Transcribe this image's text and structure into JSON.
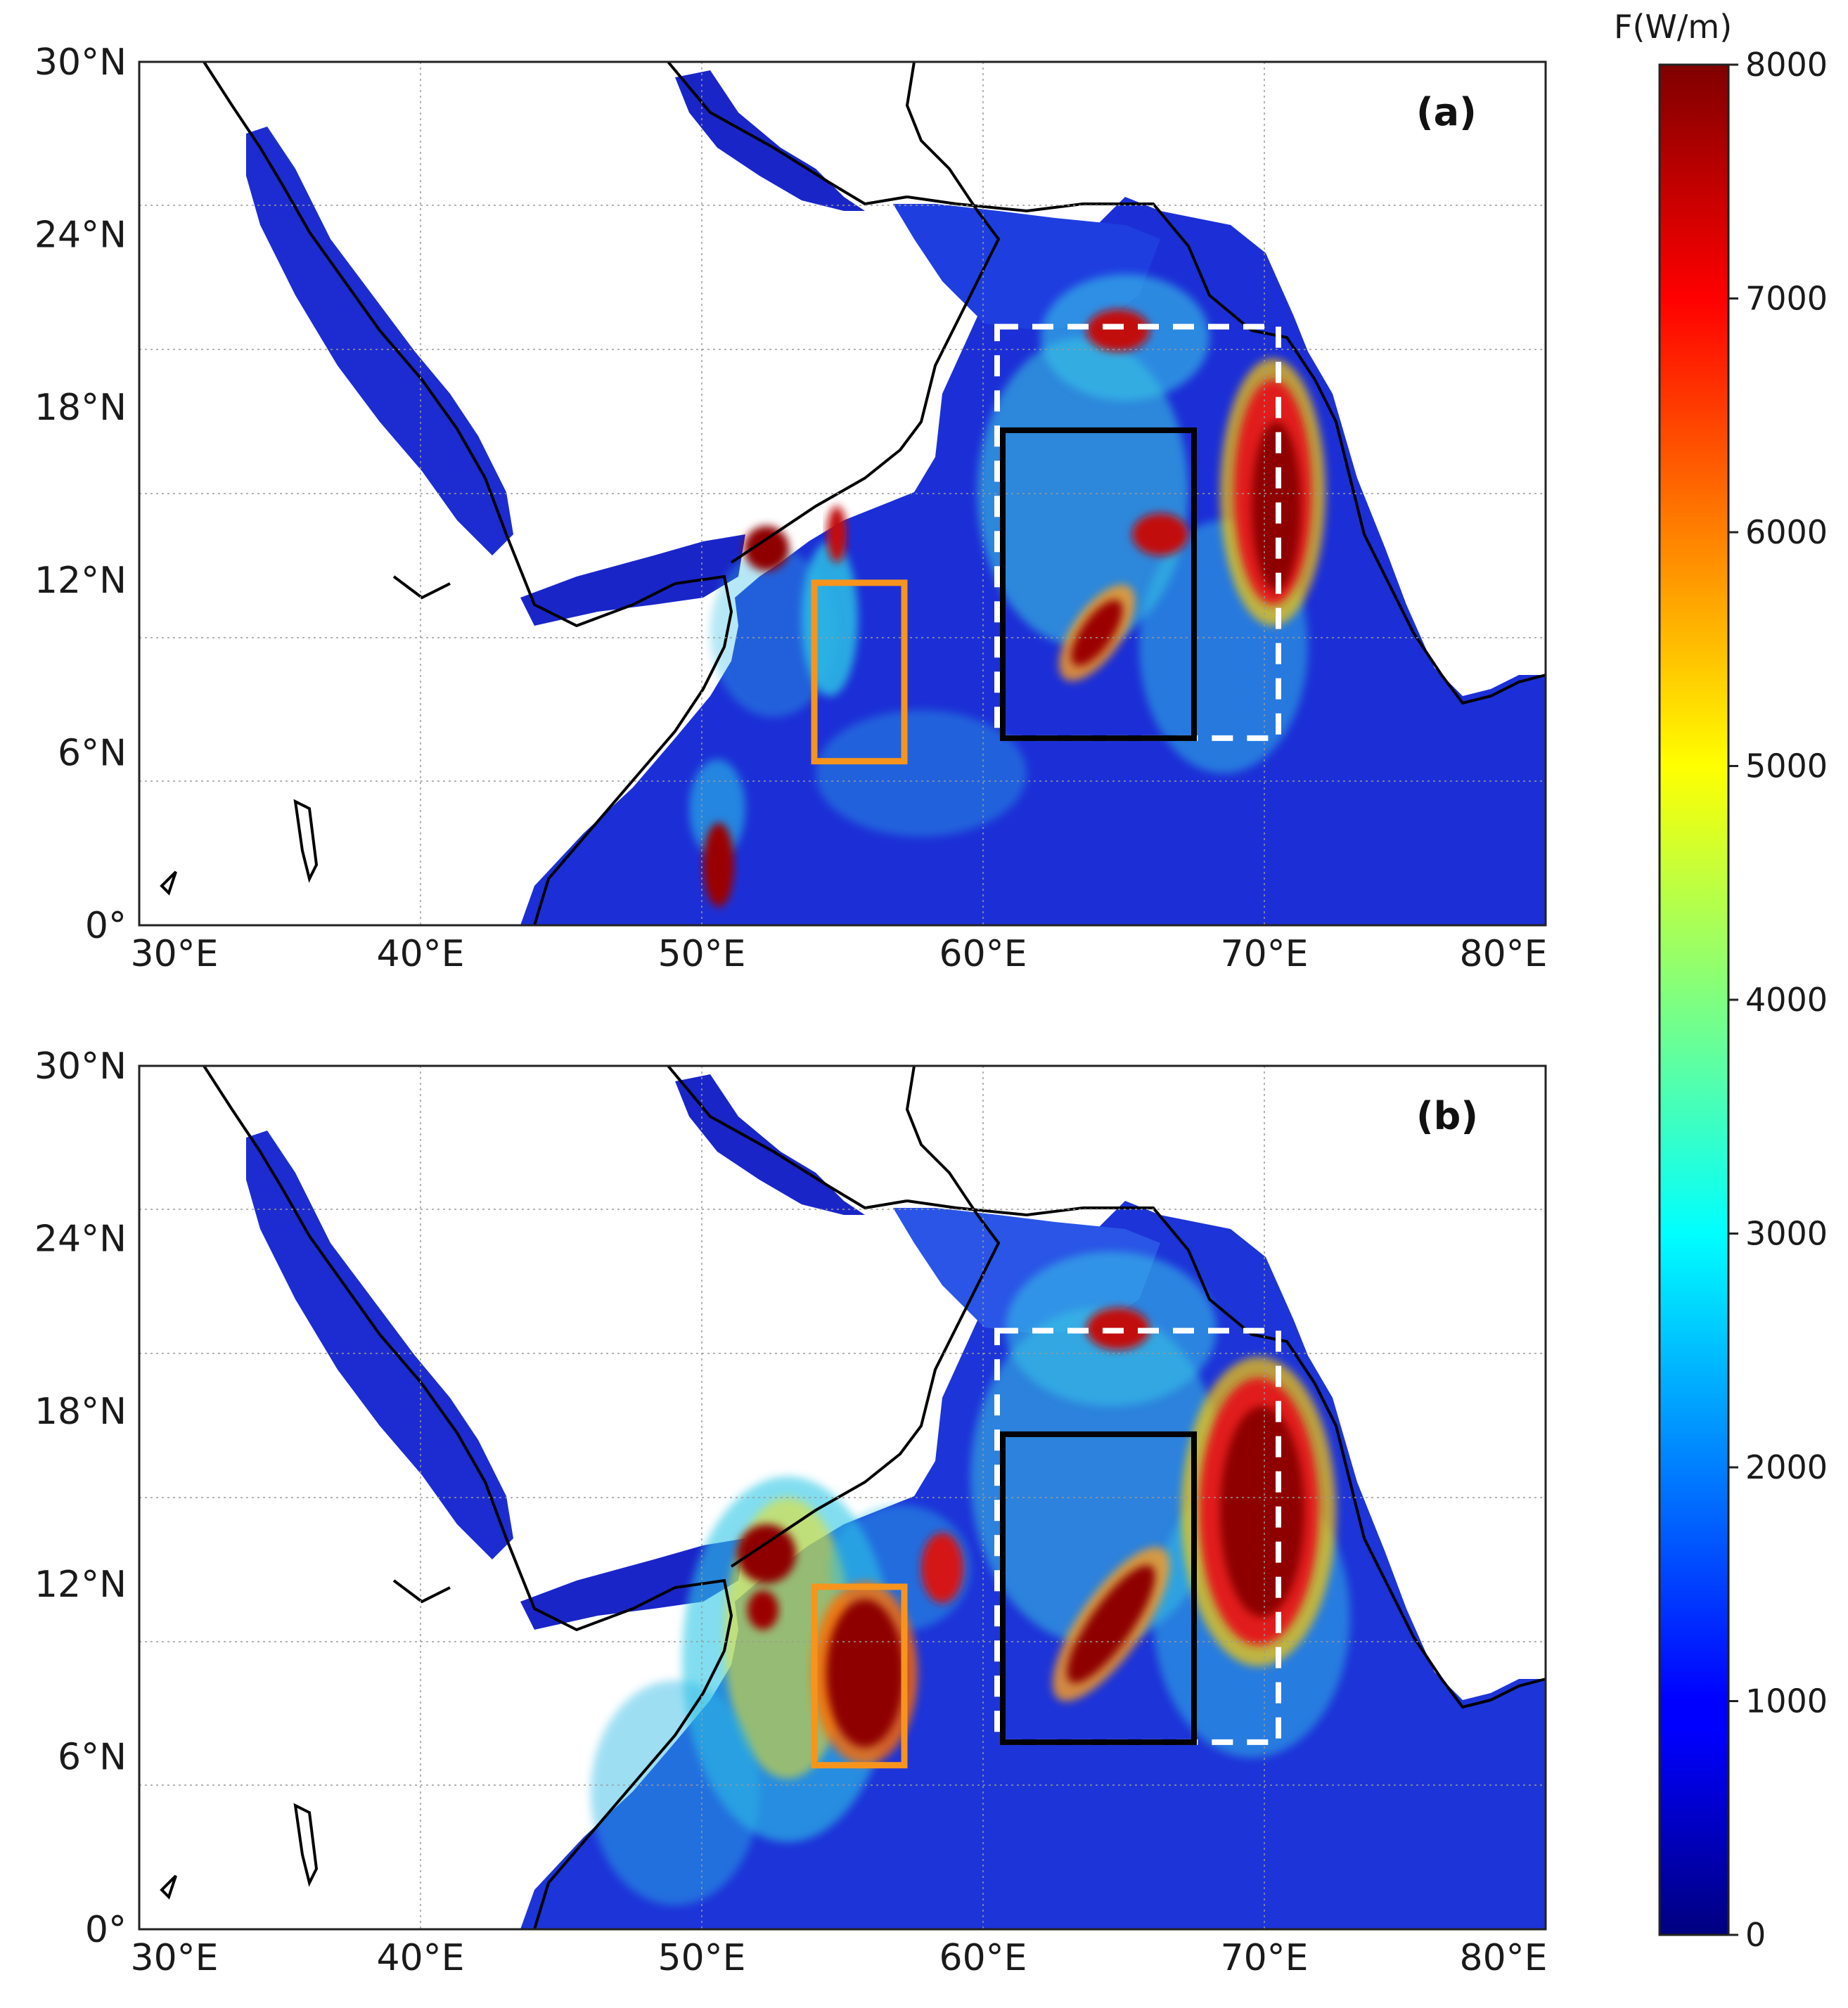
{
  "panels": [
    {
      "label": "(a)",
      "lat_ticks": [
        "30°N",
        "24°N",
        "18°N",
        "12°N",
        "6°N",
        "0°"
      ],
      "lon_ticks": [
        "30°E",
        "40°E",
        "50°E",
        "60°E",
        "70°E",
        "80°E"
      ]
    },
    {
      "label": "(b)",
      "lat_ticks": [
        "30°N",
        "24°N",
        "18°N",
        "12°N",
        "6°N",
        "0°"
      ],
      "lon_ticks": [
        "30°E",
        "40°E",
        "50°E",
        "60°E",
        "70°E",
        "80°E"
      ]
    }
  ],
  "map_extent": {
    "lon": [
      30,
      80
    ],
    "lat": [
      0,
      30
    ]
  },
  "boxes": {
    "orange": {
      "lon": [
        54,
        57.2
      ],
      "lat": [
        5.7,
        11.9
      ],
      "color": "#f7941d"
    },
    "black_solid": {
      "lon": [
        60.7,
        67.5
      ],
      "lat": [
        6.5,
        17.2
      ],
      "color": "#000000"
    },
    "white_dashed": {
      "lon": [
        60.5,
        70.5
      ],
      "lat": [
        6.5,
        20.8
      ],
      "color": "#ffffff"
    }
  },
  "colorbar": {
    "title": "F(W/m)",
    "ticks": [
      "8000",
      "7000",
      "6000",
      "5000",
      "4000",
      "3000",
      "2000",
      "1000",
      "0"
    ],
    "range": [
      0,
      8000
    ],
    "colormap": "jet"
  }
}
